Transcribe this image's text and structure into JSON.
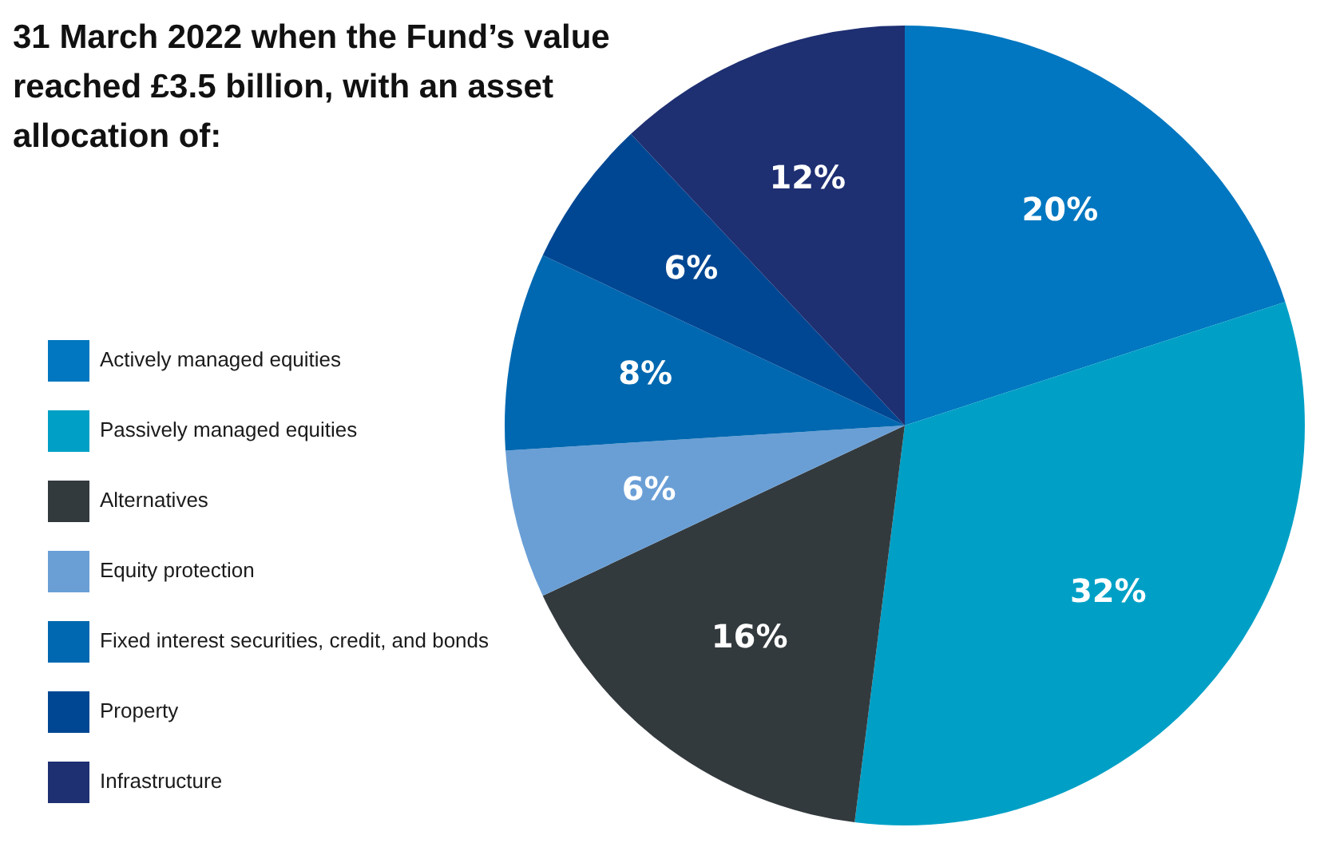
{
  "chart_data": {
    "type": "pie",
    "title": "31 March 2022 when the Fund’s value reached £3.5 billion, with an asset allocation of:",
    "categories": [
      "Actively managed equities",
      "Passively managed equities",
      "Alternatives",
      "Equity protection",
      "Fixed interest securities, credit, and bonds",
      "Property",
      "Infrastructure"
    ],
    "values": [
      20,
      32,
      16,
      6,
      8,
      6,
      12
    ],
    "value_labels": [
      "20%",
      "32%",
      "16%",
      "6%",
      "8%",
      "6%",
      "12%"
    ],
    "colors": [
      "#0077c0",
      "#00a0c6",
      "#333a3e",
      "#6a9fd6",
      "#0068b0",
      "#004793",
      "#1e2f72"
    ],
    "legend": "left"
  }
}
